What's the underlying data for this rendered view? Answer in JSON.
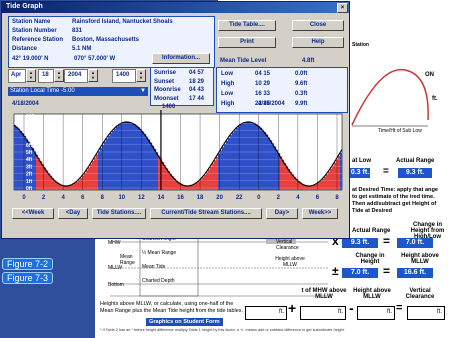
{
  "window": {
    "title": "Tide Graph"
  },
  "station": {
    "name_label": "Station Name",
    "name": "Rainsford Island, Nantucket Shoals",
    "number_label": "Station Number",
    "number": "831",
    "reference_label": "Reference Station",
    "reference": "Boston, Massachusetts",
    "distance_label": "Distance",
    "distance": "5.1 NM",
    "lat": "42° 19.000' N",
    "lon": "070° 57.000' W",
    "info_button": "Information..."
  },
  "buttons": {
    "tide_table": "Tide Table....",
    "close": "Close",
    "print": "Print",
    "help": "Help"
  },
  "date": {
    "month": "Apr",
    "day": "18",
    "year": "2004",
    "time": "1400",
    "timezone": "Station Local Time -5.00"
  },
  "sun_moon": [
    {
      "label": "Sunrise",
      "value": "04 57"
    },
    {
      "label": "Sunset",
      "value": "18 29"
    },
    {
      "label": "Moonrise",
      "value": "04 43"
    },
    {
      "label": "Moonset",
      "value": "17 44"
    }
  ],
  "mean_tide": {
    "label": "Mean Tide Level",
    "value": "4.8ft"
  },
  "tides": [
    {
      "type": "Low",
      "time": "04 15",
      "height": "0.0ft"
    },
    {
      "type": "High",
      "time": "10 29",
      "height": "9.6ft"
    },
    {
      "type": "Low",
      "time": "16 33",
      "height": "0.3ft"
    },
    {
      "type": "High",
      "time": "22 45",
      "height": "9.9ft"
    }
  ],
  "graph": {
    "date_left": "4/18/2004",
    "time_marker": "1400",
    "date_right": "4/19/2004",
    "y_labels": [
      "10ft",
      "9ft",
      "8ft",
      "7ft",
      "6ft",
      "5ft",
      "4ft",
      "3ft",
      "2ft",
      "1ft",
      "0ft"
    ],
    "x_labels": [
      "0",
      "2",
      "4",
      "6",
      "8",
      "10",
      "12",
      "14",
      "16",
      "18",
      "20",
      "22",
      "0",
      "2",
      "4",
      "6",
      "8"
    ]
  },
  "nav": [
    "<<Week",
    "<Day",
    "Tide Stations....",
    "Current/Tide Stream Stations....",
    "Day>",
    "Week>>"
  ],
  "worksheet": {
    "title": "831",
    "station": "Station",
    "on": "ON",
    "ft": "ft.",
    "sub_low": "Time/Ht of Sub Low",
    "at_low": "at Low",
    "actual_range": "Actual Range",
    "low_val": "0.3",
    "range_val": "9.3",
    "instructions": "at Desired Time: apply that ange to get estimate of the ired time. Then add/subtract get Height of Tide at Desired",
    "actual_range2": "Actual Range",
    "change_hl": "Change in Height from High/Low",
    "range_val2": "9.3",
    "change_val": "7.0",
    "change_height": "Change in Height",
    "height_mllw": "Height above MLLW",
    "change_val2": "7.0",
    "height_val": "16.6",
    "mhw_label": "t of MHW above MLLW",
    "height_mllw2": "Height above MLLW",
    "vertical_clearance": "Vertical Clearance",
    "diagram": [
      "Charted Height",
      "½ Mean Range",
      "Mean Tide",
      "Charted Depth",
      "MHW",
      "Mean Range",
      "MLLW",
      "Bottom",
      "Vertical Clearance",
      "Height above MLLW"
    ],
    "bottom_text": "Heights above MLLW, or calculate, using one-half of the Mean Range plus the Mean Tide height from the tide tables.",
    "graphics_button": "Graphics on Student Form",
    "footnote": "* If Table 2 has an * before height difference multiply Table 1 height by this factor, a +/- means add or subtract difference to get subordinate height."
  },
  "figures": [
    "Figure 7-2",
    "Figure 7-3"
  ]
}
